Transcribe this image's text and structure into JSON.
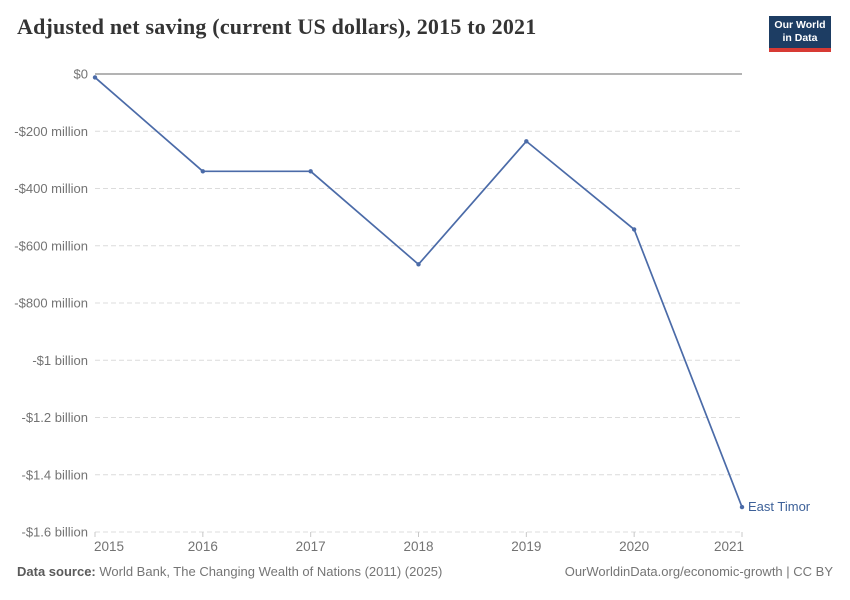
{
  "header": {
    "title": "Adjusted net saving (current US dollars), 2015 to 2021",
    "logo": {
      "line1": "Our World",
      "line2": "in Data"
    }
  },
  "colors": {
    "line": "#4b6ba8",
    "entity_label": "#3d6199",
    "grid": "#dcdcdc",
    "zero_line": "#a8a8a8",
    "tick": "#c8c8c8",
    "axis_text": "#737373",
    "title_text": "#343434",
    "logo_bg": "#1d3d63",
    "logo_red": "#d73a34",
    "footer_text": "#757575"
  },
  "chart_data": {
    "type": "line",
    "title": "Adjusted net saving (current US dollars), 2015 to 2021",
    "x": [
      2015,
      2016,
      2017,
      2018,
      2019,
      2020,
      2021
    ],
    "x_tick_labels": [
      "2015",
      "2016",
      "2017",
      "2018",
      "2019",
      "2020",
      "2021"
    ],
    "series": [
      {
        "name": "East Timor",
        "values": [
          -12000000,
          -340000000,
          -340000000,
          -665000000,
          -235000000,
          -543000000,
          -1513000000
        ]
      }
    ],
    "y_ticks": [
      {
        "value": 0,
        "label": "$0"
      },
      {
        "value": -200000000,
        "label": "-$200 million"
      },
      {
        "value": -400000000,
        "label": "-$400 million"
      },
      {
        "value": -600000000,
        "label": "-$600 million"
      },
      {
        "value": -800000000,
        "label": "-$800 million"
      },
      {
        "value": -1000000000,
        "label": "-$1 billion"
      },
      {
        "value": -1200000000,
        "label": "-$1.2 billion"
      },
      {
        "value": -1400000000,
        "label": "-$1.4 billion"
      },
      {
        "value": -1600000000,
        "label": "-$1.6 billion"
      }
    ],
    "xlim": [
      2015,
      2021
    ],
    "ylim": [
      -1600000000,
      0
    ],
    "grid": "horizontal dashed, solid line at zero",
    "legend": "none, entity label at line end"
  },
  "footer": {
    "datasource_label": "Data source:",
    "datasource_text": " World Bank, The Changing Wealth of Nations (2011) (2025)",
    "link_text": "OurWorldinData.org/economic-growth | CC BY"
  }
}
